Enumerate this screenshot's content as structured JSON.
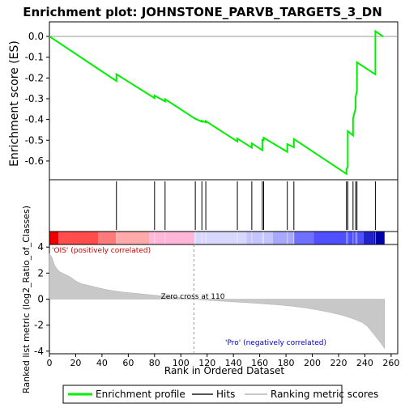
{
  "chart_data": [
    {
      "type": "line",
      "panel": "enrichment",
      "title": "Enrichment plot: JOHNSTONE_PARVB_TARGETS_3_DN",
      "ylabel": "Enrichment score (ES)",
      "xlim": [
        0,
        265
      ],
      "ylim": [
        -0.69,
        0.07
      ],
      "yticks": [
        0.0,
        -0.1,
        -0.2,
        -0.3,
        -0.4,
        -0.5,
        -0.6
      ],
      "ytick_labels": [
        "0.0",
        "-0.1",
        "-0.2",
        "-0.3",
        "-0.4",
        "-0.5",
        "-0.6"
      ],
      "grid": false,
      "zero_line": true,
      "series": [
        {
          "name": "Enrichment profile",
          "color": "#00ee00",
          "x": [
            0,
            51,
            51,
            80,
            80,
            88,
            88,
            111,
            111,
            116,
            116,
            119,
            119,
            143,
            143,
            154,
            154,
            162,
            162,
            163,
            163,
            181,
            181,
            186,
            186,
            226,
            226,
            227,
            227,
            231,
            231,
            233,
            233,
            234,
            234,
            248,
            248,
            254
          ],
          "y": [
            0.0,
            -0.215,
            -0.182,
            -0.297,
            -0.285,
            -0.313,
            -0.302,
            -0.397,
            -0.396,
            -0.411,
            -0.406,
            -0.414,
            -0.408,
            -0.506,
            -0.492,
            -0.536,
            -0.515,
            -0.548,
            -0.498,
            -0.5,
            -0.488,
            -0.556,
            -0.519,
            -0.534,
            -0.494,
            -0.662,
            -0.637,
            -0.63,
            -0.456,
            -0.477,
            -0.396,
            -0.345,
            -0.292,
            -0.26,
            -0.125,
            -0.183,
            0.025,
            -0.001
          ]
        }
      ]
    },
    {
      "type": "scatter",
      "panel": "hits",
      "name": "Hits",
      "x": [
        51,
        80,
        88,
        111,
        116,
        119,
        143,
        154,
        162,
        163,
        181,
        186,
        226,
        227,
        231,
        233,
        234,
        248
      ]
    },
    {
      "type": "heatmap",
      "panel": "rank-gradient",
      "colors": [
        "#ee0000",
        "#ff4c4c",
        "#ff7a7a",
        "#ffaaaa",
        "#ffb6d9",
        "#d8d8ff",
        "#c4c4ff",
        "#a8a8ff",
        "#7070ff",
        "#5050ff",
        "#2222cc",
        "#0000aa"
      ],
      "color_stops": [
        0,
        7,
        37,
        51,
        76,
        110,
        150,
        170,
        186,
        201,
        239,
        247,
        255
      ]
    },
    {
      "type": "area",
      "panel": "ranked-metric",
      "ylabel": "Ranked list metric (log2_Ratio_of_Classes)",
      "xlabel": "Rank in Ordered Dataset",
      "xlim": [
        0,
        265
      ],
      "ylim": [
        -4.2,
        4.2
      ],
      "xticks": [
        0,
        20,
        40,
        60,
        80,
        100,
        120,
        140,
        160,
        180,
        200,
        220,
        240,
        260
      ],
      "xtick_labels": [
        "0",
        "20",
        "40",
        "60",
        "80",
        "100",
        "120",
        "140",
        "160",
        "180",
        "200",
        "220",
        "240",
        "260"
      ],
      "yticks": [
        4,
        2,
        0,
        -2,
        -4
      ],
      "ytick_labels": [
        "4",
        "2",
        "0",
        "-2",
        "-4"
      ],
      "x": [
        0,
        2,
        4,
        6,
        8,
        12,
        16,
        20,
        24,
        28,
        32,
        38,
        45,
        55,
        65,
        75,
        85,
        95,
        105,
        110,
        115,
        125,
        135,
        145,
        155,
        165,
        175,
        185,
        195,
        205,
        215,
        225,
        232,
        238,
        242,
        246,
        250,
        253,
        255
      ],
      "y": [
        3.5,
        3.2,
        2.6,
        2.3,
        2.1,
        1.9,
        1.7,
        1.4,
        1.2,
        1.1,
        1.0,
        0.85,
        0.7,
        0.55,
        0.45,
        0.35,
        0.25,
        0.15,
        0.05,
        0.0,
        -0.05,
        -0.12,
        -0.18,
        -0.24,
        -0.3,
        -0.38,
        -0.45,
        -0.55,
        -0.68,
        -0.85,
        -1.05,
        -1.3,
        -1.55,
        -1.8,
        -2.1,
        -2.6,
        -3.1,
        -3.5,
        -3.8
      ],
      "annotations": {
        "zero_cross": "Zero cross at 110",
        "zero_cross_rank": 110,
        "positive": "'OIS' (positively correlated)",
        "negative": "'Pro' (negatively correlated)"
      }
    }
  ],
  "legend": {
    "items": [
      {
        "label": "Enrichment profile",
        "color": "#00ee00"
      },
      {
        "label": "Hits",
        "color": "#555555"
      },
      {
        "label": "Ranking metric scores",
        "color": "#c8c8c8"
      }
    ]
  }
}
